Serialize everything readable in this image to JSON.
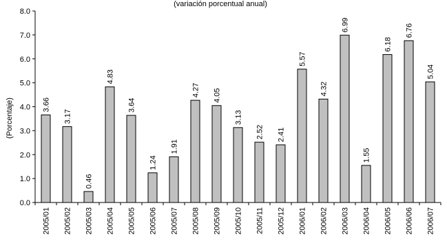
{
  "chart_data": {
    "type": "bar",
    "subtitle": "(variación porcentual anual)",
    "ylabel": "(Porcentaje)",
    "xlabel": "",
    "ylim": [
      0,
      8
    ],
    "yticks": [
      "0.0",
      "1.0",
      "2.0",
      "3.0",
      "4.0",
      "5.0",
      "6.0",
      "7.0",
      "8.0"
    ],
    "categories": [
      "2005/01",
      "2005/02",
      "2005/03",
      "2005/04",
      "2005/05",
      "2005/06",
      "2005/07",
      "2005/08",
      "2005/09",
      "2005/10",
      "2005/11",
      "2005/12",
      "2006/01",
      "2006/02",
      "2006/03",
      "2006/04",
      "2006/05",
      "2006/06",
      "2006/07"
    ],
    "values": [
      3.66,
      3.17,
      0.46,
      4.83,
      3.64,
      1.24,
      1.91,
      4.27,
      4.05,
      3.13,
      2.52,
      2.41,
      5.57,
      4.32,
      6.99,
      1.55,
      6.18,
      6.76,
      5.04
    ],
    "value_labels": [
      "3.66",
      "3.17",
      "0.46",
      "4.83",
      "3.64",
      "1.24",
      "1.91",
      "4.27",
      "4.05",
      "3.13",
      "2.52",
      "2.41",
      "5.57",
      "4.32",
      "6.99",
      "1.55",
      "6.18",
      "6.76",
      "5.04"
    ],
    "bar_color": "#c0c0c0",
    "bar_stroke": "#000000",
    "grid": false,
    "legend": "none"
  }
}
